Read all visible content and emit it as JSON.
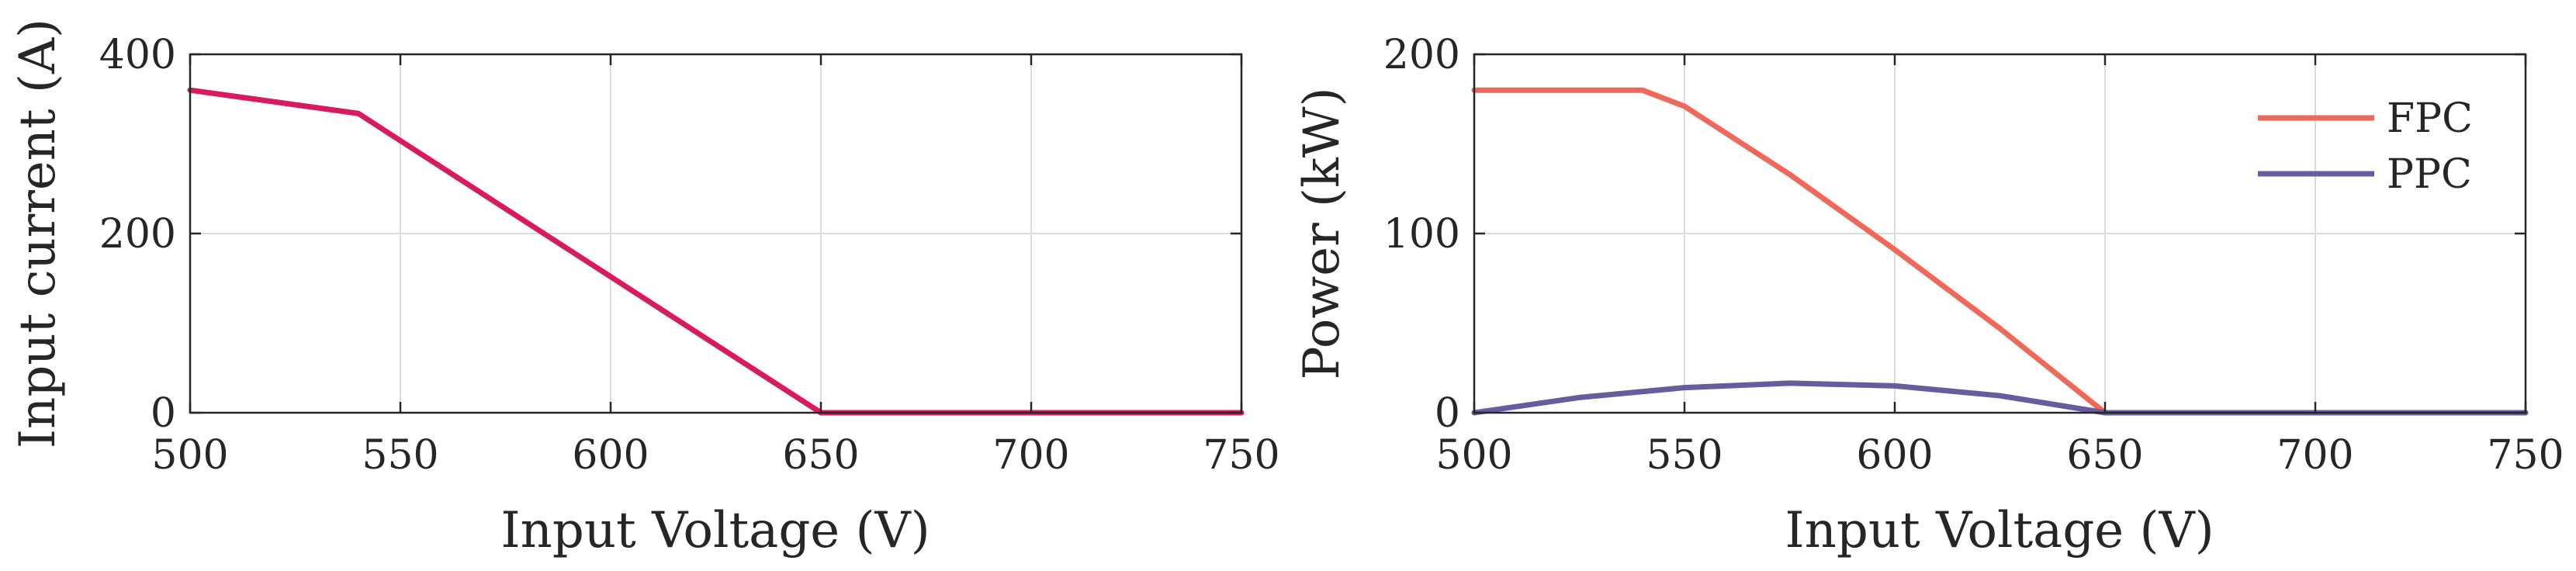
{
  "chart_data": [
    {
      "type": "line",
      "title": "",
      "xlabel": "Input Voltage (V)",
      "ylabel": "Input current (A)",
      "xlim": [
        500,
        750
      ],
      "ylim": [
        0,
        400
      ],
      "xticks": [
        "500",
        "550",
        "600",
        "650",
        "700",
        "750"
      ],
      "yticks": [
        "0",
        "200",
        "400"
      ],
      "grid": true,
      "legend": null,
      "series": [
        {
          "color": "#d81b60",
          "x": [
            500,
            540,
            650,
            750
          ],
          "y": [
            360,
            334,
            0,
            0
          ]
        }
      ]
    },
    {
      "type": "line",
      "title": "",
      "xlabel": "Input Voltage (V)",
      "ylabel": "Power (kW)",
      "xlim": [
        500,
        750
      ],
      "ylim": [
        0,
        200
      ],
      "xticks": [
        "500",
        "550",
        "600",
        "650",
        "700",
        "750"
      ],
      "yticks": [
        "0",
        "100",
        "200"
      ],
      "grid": true,
      "legend": "top-right",
      "series": [
        {
          "name": "FPC",
          "color": "#f0685a",
          "x": [
            500,
            540,
            550,
            575,
            600,
            625,
            650,
            750
          ],
          "y": [
            180,
            180,
            171,
            133,
            91,
            47,
            0,
            0
          ]
        },
        {
          "name": "PPC",
          "color": "#6a5a9e",
          "x": [
            500,
            525,
            550,
            575,
            600,
            625,
            650,
            750
          ],
          "y": [
            0,
            8.5,
            14,
            16.5,
            15,
            9.5,
            0,
            0
          ]
        }
      ]
    }
  ]
}
